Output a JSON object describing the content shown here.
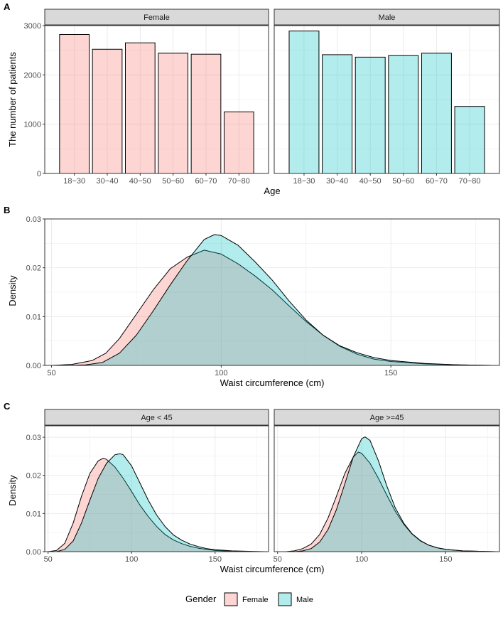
{
  "colors": {
    "female_fill": "#F8766D",
    "male_fill": "#00BFC4",
    "strip_bg": "#d9d9d9",
    "grid": "#ebebeb",
    "border": "#333333"
  },
  "panel_labels": {
    "a": "A",
    "b": "B",
    "c": "C"
  },
  "legend": {
    "title": "Gender",
    "items": [
      {
        "label": "Female",
        "color": "#F8766D"
      },
      {
        "label": "Male",
        "color": "#00BFC4"
      }
    ]
  },
  "chart_data": [
    {
      "id": "A",
      "type": "bar",
      "xlabel": "Age",
      "ylabel": "The number of patients",
      "ylim": [
        0,
        3000
      ],
      "yticks": [
        0,
        1000,
        2000,
        3000
      ],
      "categories": [
        "18−30",
        "30−40",
        "40−50",
        "50−60",
        "60−70",
        "70−80"
      ],
      "facets": [
        {
          "label": "Female",
          "series": "Female",
          "values": [
            2820,
            2520,
            2650,
            2440,
            2420,
            1250
          ]
        },
        {
          "label": "Male",
          "series": "Male",
          "values": [
            2890,
            2410,
            2360,
            2390,
            2440,
            1360
          ]
        }
      ]
    },
    {
      "id": "B",
      "type": "area",
      "xlabel": "Waist circumference (cm)",
      "ylabel": "Density",
      "xlim": [
        48,
        182
      ],
      "ylim": [
        0,
        0.03
      ],
      "xticks": [
        50,
        100,
        150
      ],
      "yticks": [
        0.0,
        0.01,
        0.02,
        0.03
      ],
      "ytick_labels": [
        "0.00",
        "0.01",
        "0.02",
        "0.03"
      ],
      "series": [
        {
          "name": "Female",
          "x": [
            50,
            56,
            62,
            66,
            70,
            75,
            80,
            85,
            90,
            95,
            100,
            105,
            110,
            115,
            120,
            125,
            130,
            135,
            140,
            145,
            150,
            160,
            170,
            180
          ],
          "y": [
            0.0,
            0.0002,
            0.001,
            0.0025,
            0.0055,
            0.0105,
            0.0155,
            0.0198,
            0.0222,
            0.0236,
            0.0228,
            0.0208,
            0.0183,
            0.0155,
            0.0122,
            0.009,
            0.0062,
            0.0039,
            0.0023,
            0.0013,
            0.0008,
            0.0003,
            0.0001,
            0.0
          ]
        },
        {
          "name": "Male",
          "x": [
            55,
            60,
            65,
            70,
            75,
            80,
            85,
            90,
            95,
            98,
            100,
            105,
            110,
            115,
            120,
            125,
            130,
            135,
            140,
            145,
            150,
            160,
            170,
            180
          ],
          "y": [
            0.0,
            0.0001,
            0.0006,
            0.0025,
            0.0062,
            0.0112,
            0.0165,
            0.0215,
            0.0258,
            0.0268,
            0.0266,
            0.0246,
            0.0212,
            0.0175,
            0.0132,
            0.0093,
            0.0062,
            0.004,
            0.0026,
            0.0016,
            0.001,
            0.0004,
            0.0001,
            0.0
          ]
        }
      ]
    },
    {
      "id": "C",
      "type": "area",
      "xlabel": "Waist circumference (cm)",
      "ylabel": "Density",
      "xlim": [
        48,
        182
      ],
      "ylim": [
        0,
        0.033
      ],
      "xticks": [
        50,
        100,
        150
      ],
      "yticks": [
        0.0,
        0.01,
        0.02,
        0.03
      ],
      "ytick_labels": [
        "0.00",
        "0.01",
        "0.02",
        "0.03"
      ],
      "facets": [
        {
          "label": "Age < 45",
          "series": [
            {
              "name": "Female",
              "x": [
                50,
                55,
                60,
                65,
                70,
                75,
                80,
                83,
                85,
                90,
                95,
                100,
                105,
                110,
                115,
                120,
                125,
                130,
                135,
                140,
                145,
                150,
                160,
                170,
                180
              ],
              "y": [
                0.0,
                0.0003,
                0.0022,
                0.0075,
                0.0145,
                0.0205,
                0.0238,
                0.0245,
                0.0242,
                0.0222,
                0.0192,
                0.0158,
                0.0122,
                0.0092,
                0.0066,
                0.0045,
                0.0031,
                0.0021,
                0.0014,
                0.0009,
                0.0006,
                0.0003,
                0.0001,
                0.0,
                0.0
              ]
            },
            {
              "name": "Male",
              "x": [
                55,
                60,
                65,
                70,
                75,
                80,
                85,
                90,
                93,
                95,
                100,
                105,
                110,
                115,
                120,
                125,
                130,
                135,
                140,
                145,
                150,
                160,
                170,
                180
              ],
              "y": [
                0.0,
                0.0006,
                0.0028,
                0.0075,
                0.0135,
                0.0192,
                0.0232,
                0.0254,
                0.0257,
                0.0254,
                0.0225,
                0.018,
                0.0135,
                0.0096,
                0.0066,
                0.0044,
                0.003,
                0.002,
                0.0013,
                0.0008,
                0.0005,
                0.0002,
                0.0001,
                0.0
              ]
            }
          ]
        },
        {
          "label": "Age >=45",
          "series": [
            {
              "name": "Female",
              "x": [
                55,
                60,
                65,
                70,
                75,
                80,
                85,
                90,
                95,
                98,
                100,
                105,
                110,
                115,
                120,
                125,
                130,
                135,
                140,
                145,
                150,
                160,
                170,
                180
              ],
              "y": [
                0.0,
                0.0002,
                0.0008,
                0.002,
                0.0045,
                0.0088,
                0.0145,
                0.0205,
                0.0248,
                0.0261,
                0.0258,
                0.0232,
                0.0192,
                0.0148,
                0.0106,
                0.0072,
                0.0046,
                0.0028,
                0.0017,
                0.001,
                0.0006,
                0.0002,
                0.0001,
                0.0
              ]
            },
            {
              "name": "Male",
              "x": [
                60,
                65,
                70,
                75,
                80,
                85,
                90,
                95,
                100,
                102,
                105,
                110,
                115,
                120,
                125,
                130,
                135,
                140,
                145,
                150,
                160,
                170,
                180
              ],
              "y": [
                0.0,
                0.0002,
                0.0008,
                0.0025,
                0.0058,
                0.011,
                0.0178,
                0.0248,
                0.0296,
                0.0301,
                0.0292,
                0.0238,
                0.0172,
                0.0115,
                0.0075,
                0.0047,
                0.0029,
                0.0017,
                0.001,
                0.0006,
                0.0002,
                0.0001,
                0.0
              ]
            }
          ]
        }
      ]
    }
  ]
}
